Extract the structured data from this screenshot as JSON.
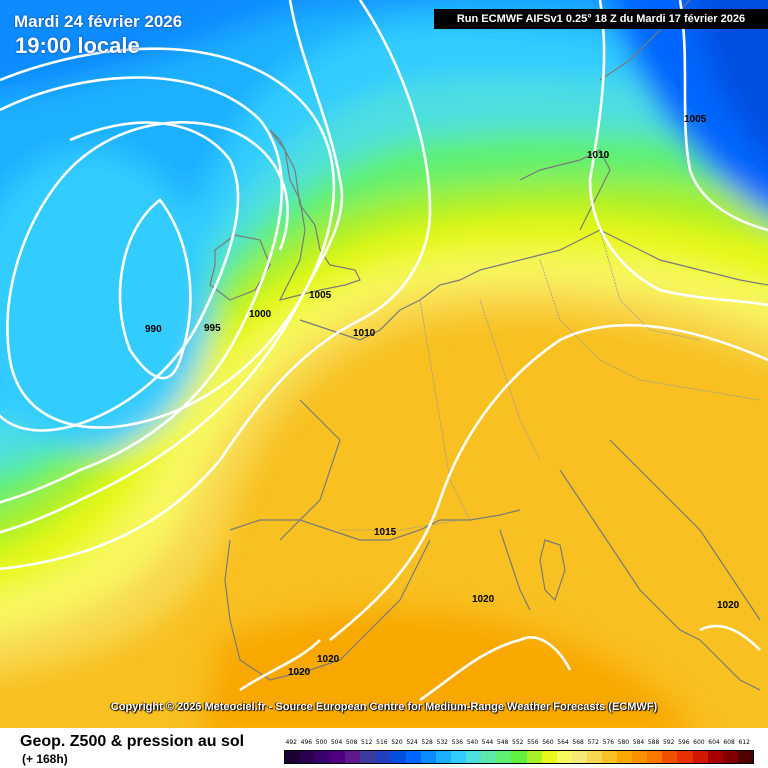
{
  "header": {
    "date": "Mardi 24 février 2026",
    "local_time": "19:00 locale",
    "run_info": "Run ECMWF AIFSv1 0.25° 18 Z du Mardi 17 février 2026"
  },
  "copyright": "Copyright © 2026 Meteociel.fr - Source European Centre for Medium-Range Weather Forecasts (ECMWF)",
  "footer": {
    "title": "Geop. Z500 & pression au sol",
    "subtitle": "(+ 168h)"
  },
  "isobar_labels": [
    "990",
    "995",
    "1000",
    "1005",
    "1010",
    "1005",
    "1010",
    "1015",
    "1020",
    "1020",
    "1020",
    "1020"
  ],
  "color_scale": {
    "values": [
      "492",
      "496",
      "500",
      "504",
      "508",
      "512",
      "516",
      "520",
      "524",
      "528",
      "532",
      "536",
      "540",
      "544",
      "548",
      "552",
      "556",
      "560",
      "564",
      "568",
      "572",
      "576",
      "580",
      "584",
      "588",
      "592",
      "596",
      "600",
      "604",
      "608",
      "612"
    ],
    "colors": [
      "#1a0033",
      "#2a0050",
      "#3a006e",
      "#4d0080",
      "#5e1a8c",
      "#3b3b9e",
      "#2040c0",
      "#0050e0",
      "#0066ff",
      "#0a8cff",
      "#1ab0ff",
      "#33ccff",
      "#4ddfe0",
      "#5ee8a8",
      "#5ef070",
      "#60f040",
      "#a8f028",
      "#e8f818",
      "#f8f860",
      "#f8e87a",
      "#f8d850",
      "#f8c020",
      "#f8a800",
      "#f89000",
      "#f87800",
      "#f05000",
      "#e83000",
      "#d01800",
      "#a80000",
      "#800000",
      "#500000"
    ]
  }
}
